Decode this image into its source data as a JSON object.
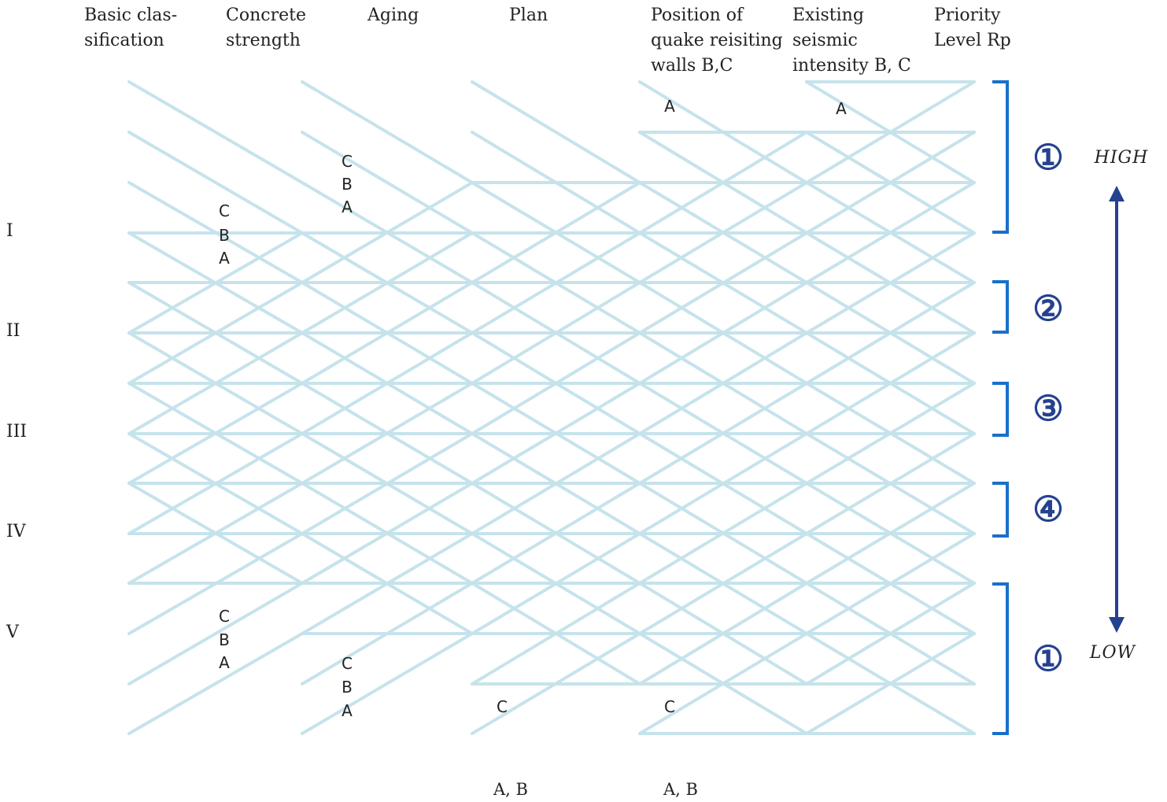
{
  "headers": {
    "basic_classification": "Basic clas-\nsification",
    "concrete_strength": "Concrete\nstrength",
    "aging": "Aging",
    "plan": "Plan",
    "position_of_walls": "Position of\nquake reisiting\nwalls B,C",
    "existing_seismic_intensity": "Existing\nseismic\nintensity B, C",
    "priority_level": "Priority\nLevel Rp"
  },
  "classes": [
    "I",
    "II",
    "III",
    "IV",
    "V"
  ],
  "branch_labels": {
    "concrete_top": [
      "C",
      "B",
      "A"
    ],
    "aging_top": [
      "C",
      "B",
      "A"
    ],
    "concrete_bottom": [
      "C",
      "B",
      "A"
    ],
    "aging_bottom": [
      "C",
      "B",
      "A"
    ],
    "walls_top": "A",
    "seismic_top": "A",
    "plan_bottom": "C",
    "walls_bottom": "C",
    "plan_footer": "A, B",
    "walls_footer": "A, B"
  },
  "priority_groups": [
    "①",
    "②",
    "③",
    "④",
    "①"
  ],
  "scale": {
    "high": "HIGH",
    "low": "LOW"
  },
  "colors": {
    "lattice": "#c6e3ec",
    "bracket": "#1a70c9",
    "arrow": "#25418f",
    "text": "#222222"
  }
}
